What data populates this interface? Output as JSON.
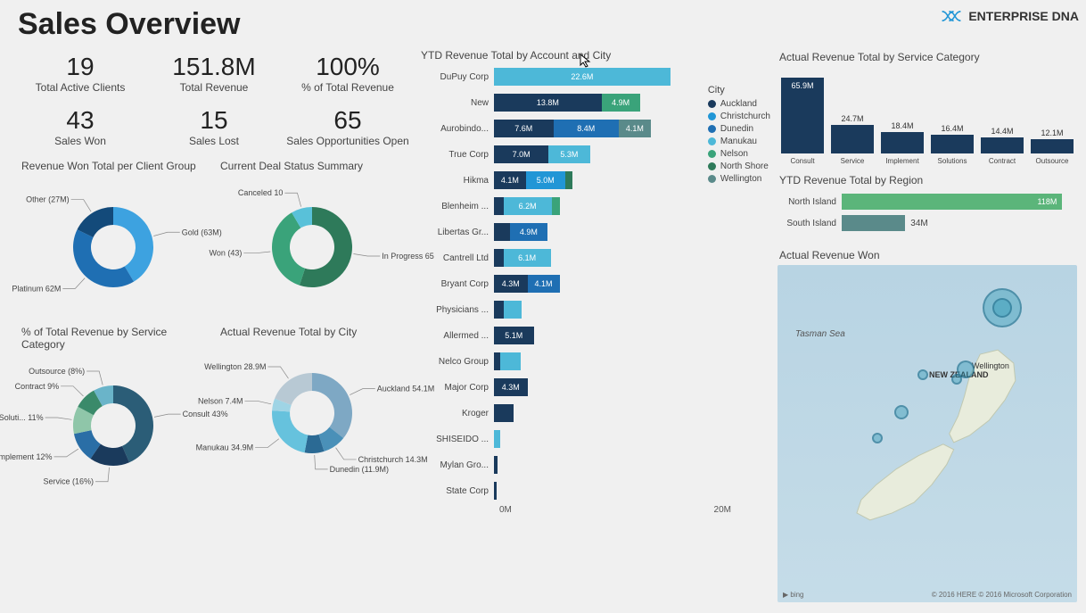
{
  "page_title": "Sales Overview",
  "brand": {
    "name": "ENTERPRISE DNA",
    "accent": "#2196d6"
  },
  "kpis": [
    {
      "value": "19",
      "label": "Total Active Clients"
    },
    {
      "value": "151.8M",
      "label": "Total Revenue"
    },
    {
      "value": "100%",
      "label": "% of Total Revenue"
    },
    {
      "value": "43",
      "label": "Sales Won"
    },
    {
      "value": "15",
      "label": "Sales Lost"
    },
    {
      "value": "65",
      "label": "Sales Opportunities Open"
    }
  ],
  "donut_client_group": {
    "title": "Revenue Won Total per Client Group",
    "segments": [
      {
        "label": "Gold (63M)",
        "value": 63,
        "color": "#3da2e0"
      },
      {
        "label": "Platinum 62M",
        "value": 62,
        "color": "#1f6fb3"
      },
      {
        "label": "Other (27M)",
        "value": 27,
        "color": "#134a7a"
      }
    ]
  },
  "donut_deal_status": {
    "title": "Current Deal Status Summary",
    "segments": [
      {
        "label": "In Progress 65",
        "value": 65,
        "color": "#2e7a5a"
      },
      {
        "label": "Won (43)",
        "value": 43,
        "color": "#3aa37a"
      },
      {
        "label": "Canceled 10",
        "value": 10,
        "color": "#59c1d9"
      }
    ]
  },
  "donut_revenue_service": {
    "title": "% of Total Revenue by Service Category",
    "segments": [
      {
        "label": "Consult 43%",
        "value": 43,
        "color": "#2b5d77"
      },
      {
        "label": "Service (16%)",
        "value": 16,
        "color": "#1a3a5c"
      },
      {
        "label": "Implement 12%",
        "value": 12,
        "color": "#2a6ea6"
      },
      {
        "label": "Soluti... 11%",
        "value": 11,
        "color": "#8fc6a9"
      },
      {
        "label": "Contract 9%",
        "value": 9,
        "color": "#3a8a6a"
      },
      {
        "label": "Outsource (8%)",
        "value": 8,
        "color": "#6ab4c9"
      }
    ]
  },
  "donut_revenue_city": {
    "title": "Actual Revenue Total by City",
    "segments": [
      {
        "label": "Auckland 54.1M",
        "value": 54.1,
        "color": "#7ea8c4"
      },
      {
        "label": "Christchurch 14.3M",
        "value": 14.3,
        "color": "#4a90b8"
      },
      {
        "label": "Dunedin (11.9M)",
        "value": 11.9,
        "color": "#2b6a94"
      },
      {
        "label": "Manukau 34.9M",
        "value": 34.9,
        "color": "#66c2dd"
      },
      {
        "label": "Nelson 7.4M",
        "value": 7.4,
        "color": "#9fd4e5"
      },
      {
        "label": "Wellington 28.9M",
        "value": 28.9,
        "color": "#b8c9d4"
      }
    ]
  },
  "stacked_by_account": {
    "title": "YTD Revenue Total by Account and City",
    "xmax": 24,
    "xticks": [
      "0M",
      "20M"
    ],
    "legend_title": "City",
    "legend": [
      {
        "label": "Auckland",
        "color": "#1a3a5c"
      },
      {
        "label": "Christchurch",
        "color": "#2196d6"
      },
      {
        "label": "Dunedin",
        "color": "#1f6fb3"
      },
      {
        "label": "Manukau",
        "color": "#4db8d8"
      },
      {
        "label": "Nelson",
        "color": "#3aa37a"
      },
      {
        "label": "North Shore",
        "color": "#2e7a5a"
      },
      {
        "label": "Wellington",
        "color": "#5a8a8a"
      }
    ],
    "rows": [
      {
        "name": "DuPuy Corp",
        "segs": [
          {
            "v": 22.6,
            "c": "#4db8d8",
            "t": "22.6M"
          }
        ]
      },
      {
        "name": "New",
        "segs": [
          {
            "v": 13.8,
            "c": "#1a3a5c",
            "t": "13.8M"
          },
          {
            "v": 4.9,
            "c": "#3aa37a",
            "t": "4.9M"
          }
        ]
      },
      {
        "name": "Aurobindo...",
        "segs": [
          {
            "v": 7.6,
            "c": "#1a3a5c",
            "t": "7.6M"
          },
          {
            "v": 8.4,
            "c": "#1f6fb3",
            "t": "8.4M"
          },
          {
            "v": 4.1,
            "c": "#5a8a8a",
            "t": "4.1M"
          }
        ]
      },
      {
        "name": "True Corp",
        "segs": [
          {
            "v": 7.0,
            "c": "#1a3a5c",
            "t": "7.0M"
          },
          {
            "v": 5.3,
            "c": "#4db8d8",
            "t": "5.3M"
          }
        ]
      },
      {
        "name": "Hikma",
        "segs": [
          {
            "v": 4.1,
            "c": "#1a3a5c",
            "t": "4.1M"
          },
          {
            "v": 5.0,
            "c": "#2196d6",
            "t": "5.0M"
          },
          {
            "v": 1.0,
            "c": "#2e7a5a",
            "t": ""
          }
        ]
      },
      {
        "name": "Blenheim ...",
        "segs": [
          {
            "v": 1.2,
            "c": "#1a3a5c",
            "t": ""
          },
          {
            "v": 6.2,
            "c": "#4db8d8",
            "t": "6.2M"
          },
          {
            "v": 1.0,
            "c": "#3aa37a",
            "t": ""
          }
        ]
      },
      {
        "name": "Libertas Gr...",
        "segs": [
          {
            "v": 2.0,
            "c": "#1a3a5c",
            "t": ""
          },
          {
            "v": 4.9,
            "c": "#1f6fb3",
            "t": "4.9M"
          }
        ]
      },
      {
        "name": "Cantrell Ltd",
        "segs": [
          {
            "v": 1.2,
            "c": "#1a3a5c",
            "t": ""
          },
          {
            "v": 6.1,
            "c": "#4db8d8",
            "t": "6.1M"
          }
        ]
      },
      {
        "name": "Bryant Corp",
        "segs": [
          {
            "v": 4.3,
            "c": "#1a3a5c",
            "t": "4.3M"
          },
          {
            "v": 4.1,
            "c": "#1f6fb3",
            "t": "4.1M"
          }
        ]
      },
      {
        "name": "Physicians ...",
        "segs": [
          {
            "v": 1.3,
            "c": "#1a3a5c",
            "t": ""
          },
          {
            "v": 2.2,
            "c": "#4db8d8",
            "t": ""
          }
        ]
      },
      {
        "name": "Allermed ...",
        "segs": [
          {
            "v": 5.1,
            "c": "#1a3a5c",
            "t": "5.1M"
          }
        ]
      },
      {
        "name": "Nelco Group",
        "segs": [
          {
            "v": 0.8,
            "c": "#1a3a5c",
            "t": ""
          },
          {
            "v": 2.6,
            "c": "#4db8d8",
            "t": ""
          }
        ]
      },
      {
        "name": "Major Corp",
        "segs": [
          {
            "v": 4.3,
            "c": "#1a3a5c",
            "t": "4.3M"
          }
        ]
      },
      {
        "name": "Kroger",
        "segs": [
          {
            "v": 2.5,
            "c": "#1a3a5c",
            "t": ""
          }
        ]
      },
      {
        "name": "SHISEIDO ...",
        "segs": [
          {
            "v": 0.8,
            "c": "#4db8d8",
            "t": ""
          }
        ]
      },
      {
        "name": "Mylan Gro...",
        "segs": [
          {
            "v": 0.4,
            "c": "#1a3a5c",
            "t": ""
          }
        ]
      },
      {
        "name": "State Corp",
        "segs": [
          {
            "v": 0.3,
            "c": "#1a3a5c",
            "t": ""
          }
        ]
      }
    ]
  },
  "col_by_service": {
    "title": "Actual Revenue Total by Service Category",
    "ymax": 70,
    "bar_color": "#1a3a5c",
    "cols": [
      {
        "label": "Consult",
        "value": 65.9,
        "text": "65.9M",
        "inside": true
      },
      {
        "label": "Service",
        "value": 24.7,
        "text": "24.7M"
      },
      {
        "label": "Implement",
        "value": 18.4,
        "text": "18.4M"
      },
      {
        "label": "Solutions",
        "value": 16.4,
        "text": "16.4M"
      },
      {
        "label": "Contract",
        "value": 14.4,
        "text": "14.4M"
      },
      {
        "label": "Outsource",
        "value": 12.1,
        "text": "12.1M"
      }
    ]
  },
  "region_chart": {
    "title": "YTD Revenue Total by Region",
    "xmax": 124,
    "rows": [
      {
        "name": "North Island",
        "value": 118,
        "text": "118M",
        "color": "#5bb57a",
        "inside": true
      },
      {
        "name": "South Island",
        "value": 34,
        "text": "34M",
        "color": "#5a8a8a",
        "inside": false
      }
    ]
  },
  "map": {
    "title": "Actual Revenue Won",
    "sea_label": "Tasman Sea",
    "country_label": "NEW ZEALAND",
    "city_label": "Wellington",
    "attribution_left": "▶ bing",
    "attribution_right": "© 2016 HERE     © 2016 Microsoft Corporation",
    "bubbles": [
      {
        "x": 74,
        "y": 22,
        "r": 22
      },
      {
        "x": 74,
        "y": 22,
        "r": 11
      },
      {
        "x": 62,
        "y": 53,
        "r": 10
      },
      {
        "x": 59,
        "y": 58,
        "r": 6
      },
      {
        "x": 48,
        "y": 56,
        "r": 6
      },
      {
        "x": 41,
        "y": 75,
        "r": 8
      },
      {
        "x": 33,
        "y": 88,
        "r": 6
      }
    ]
  }
}
